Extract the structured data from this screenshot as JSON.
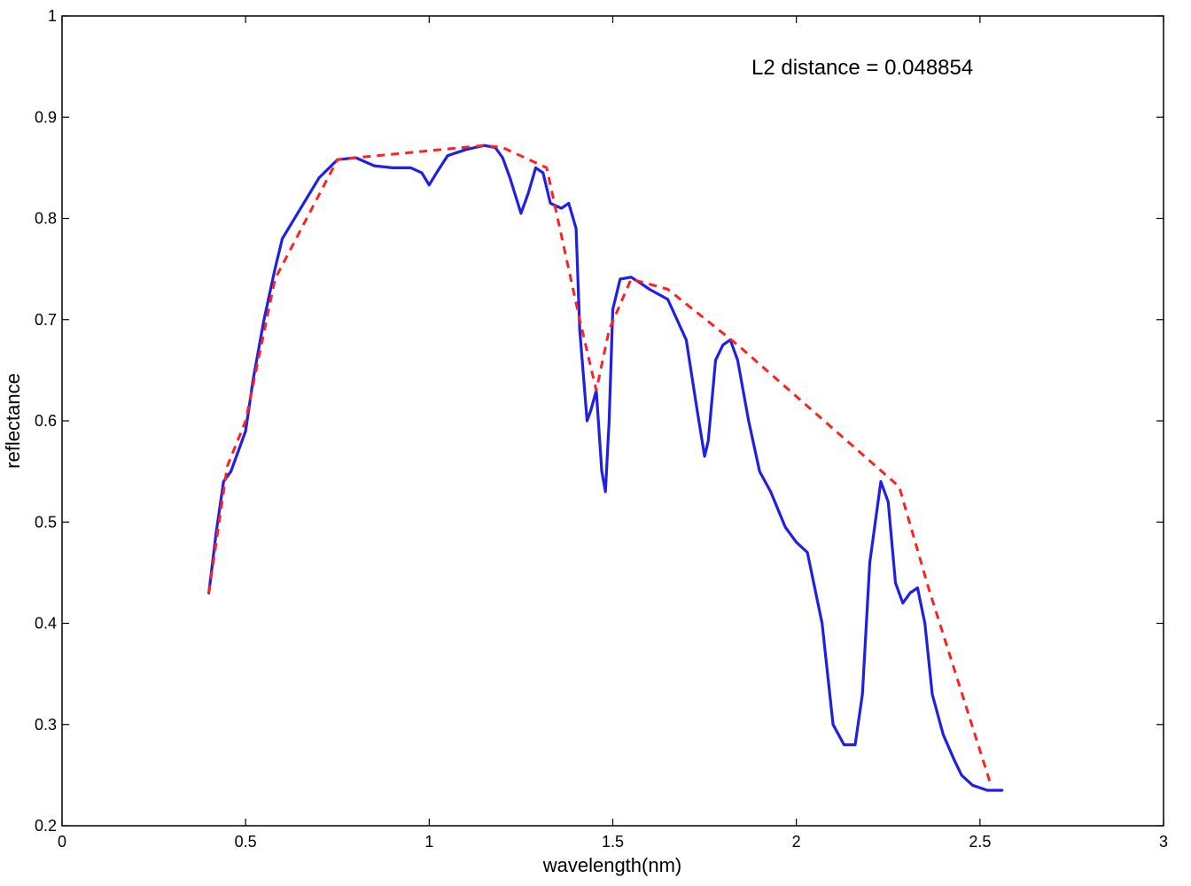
{
  "chart_data": {
    "type": "line",
    "xlabel": "wavelength(nm)",
    "ylabel": "reflectance",
    "xlim": [
      0,
      3
    ],
    "ylim": [
      0.2,
      1
    ],
    "xticks": [
      0,
      0.5,
      1,
      1.5,
      2,
      2.5,
      3
    ],
    "xtick_labels": [
      "0",
      "0.5",
      "1",
      "1.5",
      "2",
      "2.5",
      "3"
    ],
    "yticks": [
      0.2,
      0.3,
      0.4,
      0.5,
      0.6,
      0.7,
      0.8,
      0.9,
      1
    ],
    "ytick_labels": [
      "0.2",
      "0.3",
      "0.4",
      "0.5",
      "0.6",
      "0.7",
      "0.8",
      "0.9",
      "1"
    ],
    "grid": false,
    "annotation": "L2 distance = 0.048854",
    "series": [
      {
        "color": "#1f1fe6",
        "style": "solid",
        "x": [
          0.4,
          0.42,
          0.44,
          0.46,
          0.5,
          0.52,
          0.55,
          0.58,
          0.6,
          0.65,
          0.7,
          0.75,
          0.8,
          0.85,
          0.9,
          0.95,
          0.98,
          1.0,
          1.02,
          1.05,
          1.1,
          1.15,
          1.18,
          1.2,
          1.22,
          1.25,
          1.27,
          1.29,
          1.31,
          1.33,
          1.36,
          1.38,
          1.4,
          1.41,
          1.43,
          1.44,
          1.455,
          1.47,
          1.48,
          1.49,
          1.5,
          1.52,
          1.55,
          1.58,
          1.6,
          1.65,
          1.7,
          1.73,
          1.75,
          1.76,
          1.78,
          1.8,
          1.82,
          1.84,
          1.87,
          1.9,
          1.93,
          1.97,
          2.0,
          2.03,
          2.07,
          2.1,
          2.13,
          2.16,
          2.18,
          2.2,
          2.23,
          2.25,
          2.27,
          2.29,
          2.31,
          2.33,
          2.35,
          2.37,
          2.4,
          2.43,
          2.45,
          2.48,
          2.52,
          2.56
        ],
        "y": [
          0.43,
          0.49,
          0.54,
          0.55,
          0.59,
          0.64,
          0.7,
          0.75,
          0.78,
          0.81,
          0.84,
          0.858,
          0.86,
          0.852,
          0.85,
          0.85,
          0.845,
          0.833,
          0.845,
          0.862,
          0.868,
          0.872,
          0.87,
          0.86,
          0.84,
          0.805,
          0.825,
          0.85,
          0.845,
          0.815,
          0.81,
          0.815,
          0.79,
          0.69,
          0.6,
          0.61,
          0.63,
          0.55,
          0.53,
          0.6,
          0.71,
          0.74,
          0.742,
          0.735,
          0.73,
          0.72,
          0.68,
          0.61,
          0.565,
          0.58,
          0.66,
          0.675,
          0.68,
          0.66,
          0.6,
          0.55,
          0.53,
          0.495,
          0.48,
          0.47,
          0.4,
          0.3,
          0.28,
          0.28,
          0.33,
          0.46,
          0.54,
          0.52,
          0.44,
          0.42,
          0.43,
          0.435,
          0.4,
          0.33,
          0.29,
          0.265,
          0.25,
          0.24,
          0.235,
          0.235
        ]
      },
      {
        "color": "#ff2020",
        "style": "dashed",
        "x": [
          0.4,
          0.45,
          0.5,
          0.58,
          0.75,
          0.8,
          1.15,
          1.2,
          1.32,
          1.41,
          1.455,
          1.49,
          1.55,
          1.65,
          1.84,
          2.28,
          2.36,
          2.53
        ],
        "y": [
          0.43,
          0.555,
          0.6,
          0.74,
          0.858,
          0.86,
          0.872,
          0.87,
          0.85,
          0.7,
          0.63,
          0.69,
          0.74,
          0.73,
          0.675,
          0.535,
          0.435,
          0.24
        ]
      }
    ]
  }
}
